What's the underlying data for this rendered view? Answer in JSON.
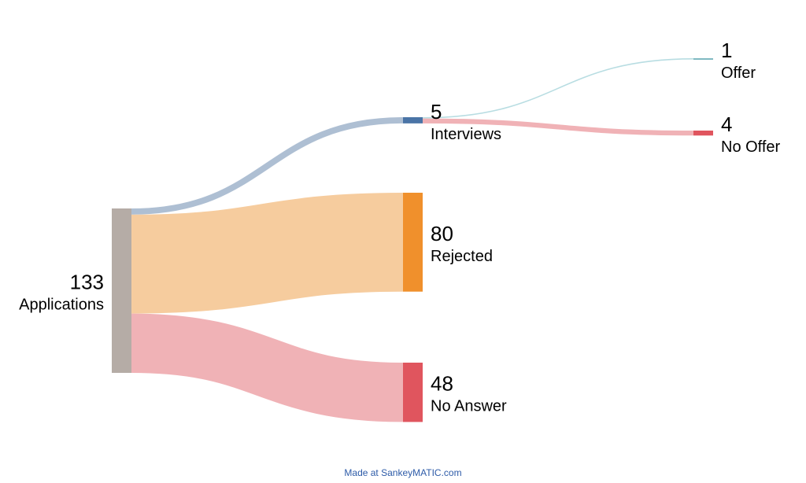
{
  "chart_data": {
    "type": "sankey",
    "nodes": [
      {
        "id": "applications",
        "label": "Applications",
        "value": 133,
        "color": "#b5aca6"
      },
      {
        "id": "interviews",
        "label": "Interviews",
        "value": 5,
        "color": "#4a74a6"
      },
      {
        "id": "rejected",
        "label": "Rejected",
        "value": 80,
        "color": "#f0902c"
      },
      {
        "id": "no_answer",
        "label": "No Answer",
        "value": 48,
        "color": "#e0555e"
      },
      {
        "id": "offer",
        "label": "Offer",
        "value": 1,
        "color": "#7fb9c2"
      },
      {
        "id": "no_offer",
        "label": "No Offer",
        "value": 4,
        "color": "#e0555e"
      }
    ],
    "links": [
      {
        "source": "applications",
        "target": "interviews",
        "value": 5,
        "color": "#aebfd3"
      },
      {
        "source": "applications",
        "target": "rejected",
        "value": 80,
        "color": "#f6cc9e"
      },
      {
        "source": "applications",
        "target": "no_answer",
        "value": 48,
        "color": "#f0b2b6"
      },
      {
        "source": "interviews",
        "target": "offer",
        "value": 1,
        "color": "#b8dde2"
      },
      {
        "source": "interviews",
        "target": "no_offer",
        "value": 4,
        "color": "#f0b2b6"
      }
    ]
  },
  "credit": "Made at SankeyMATIC.com"
}
